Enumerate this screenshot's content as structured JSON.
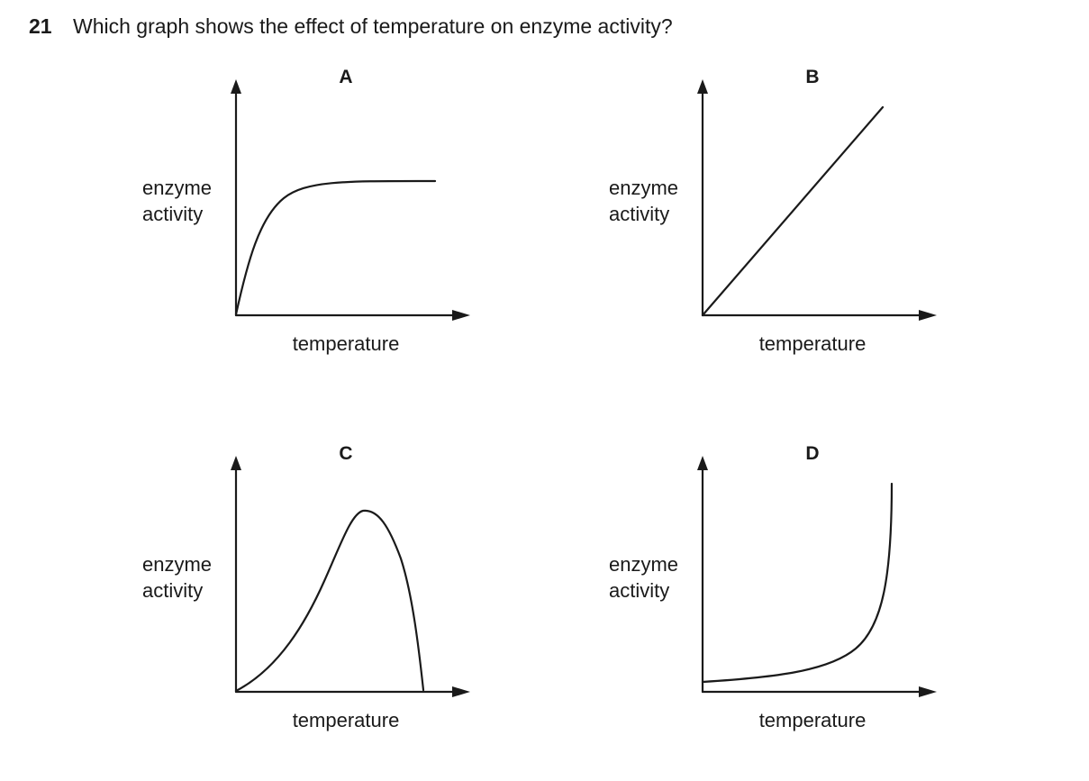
{
  "question": {
    "number": "21",
    "text": "Which graph shows the effect of temperature on enzyme activity?"
  },
  "options": [
    {
      "letter": "A",
      "y_label_line1": "enzyme",
      "y_label_line2": "activity",
      "x_label": "temperature",
      "curve": "rises steeply then levels off to a plateau"
    },
    {
      "letter": "B",
      "y_label_line1": "enzyme",
      "y_label_line2": "activity",
      "x_label": "temperature",
      "curve": "straight line increasing from origin"
    },
    {
      "letter": "C",
      "y_label_line1": "enzyme",
      "y_label_line2": "activity",
      "x_label": "temperature",
      "curve": "rises to a peak then falls sharply to zero"
    },
    {
      "letter": "D",
      "y_label_line1": "enzyme",
      "y_label_line2": "activity",
      "x_label": "temperature",
      "curve": "low and slowly rising, then rising steeply"
    }
  ]
}
